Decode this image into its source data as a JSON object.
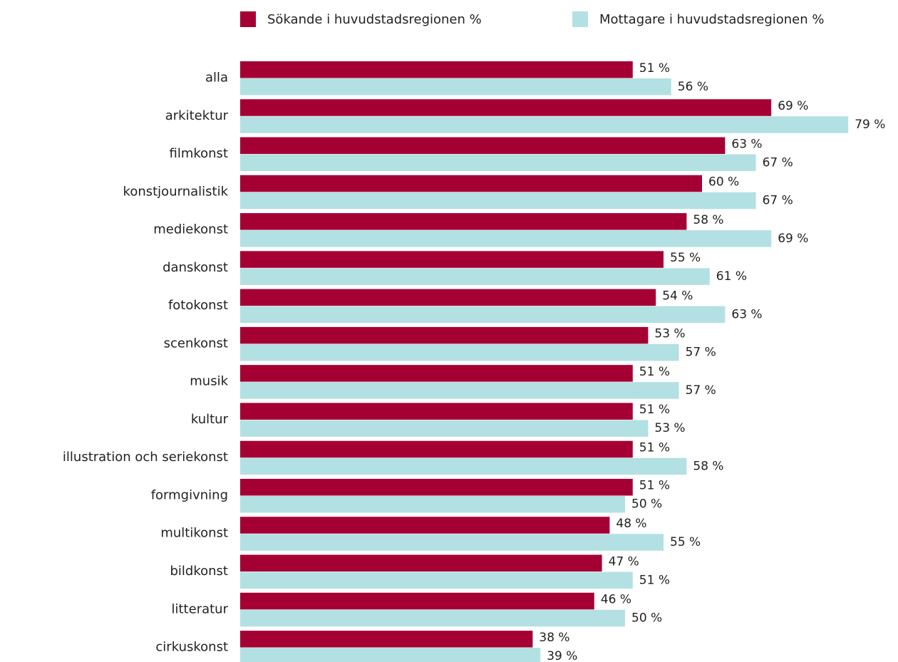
{
  "chart_data": {
    "type": "barh",
    "categories": [
      "alla",
      "arkitektur",
      "filmkonst",
      "konstjournalistik",
      "mediekonst",
      "danskonst",
      "fotokonst",
      "scenkonst",
      "musik",
      "kultur",
      "illustration och seriekonst",
      "formgivning",
      "multikonst",
      "bildkonst",
      "litteratur",
      "cirkuskonst"
    ],
    "series": [
      {
        "name": "Sökande i huvudstadsregionen %",
        "color": "#a50034",
        "values": [
          51,
          69,
          63,
          60,
          58,
          55,
          54,
          53,
          51,
          51,
          51,
          51,
          48,
          47,
          46,
          38
        ],
        "value_labels": [
          "51 %",
          "69 %",
          "63 %",
          "60 %",
          "58 %",
          "55 %",
          "54 %",
          "53 %",
          "51 %",
          "51 %",
          "51 %",
          "51 %",
          "48 %",
          "47 %",
          "46 %",
          "38 %"
        ]
      },
      {
        "name": "Mottagare i huvudstadsregionen %",
        "color": "#b3e0e3",
        "values": [
          56,
          79,
          67,
          67,
          69,
          61,
          63,
          57,
          57,
          53,
          58,
          50,
          55,
          51,
          50,
          39
        ],
        "value_labels": [
          "56 %",
          "79 %",
          "67 %",
          "67 %",
          "69 %",
          "61 %",
          "63 %",
          "57 %",
          "57 %",
          "53 %",
          "58 %",
          "50 %",
          "55 %",
          "51 %",
          "50 %",
          "39 %"
        ]
      }
    ],
    "xlim": [
      0,
      100
    ],
    "legend": "top"
  }
}
